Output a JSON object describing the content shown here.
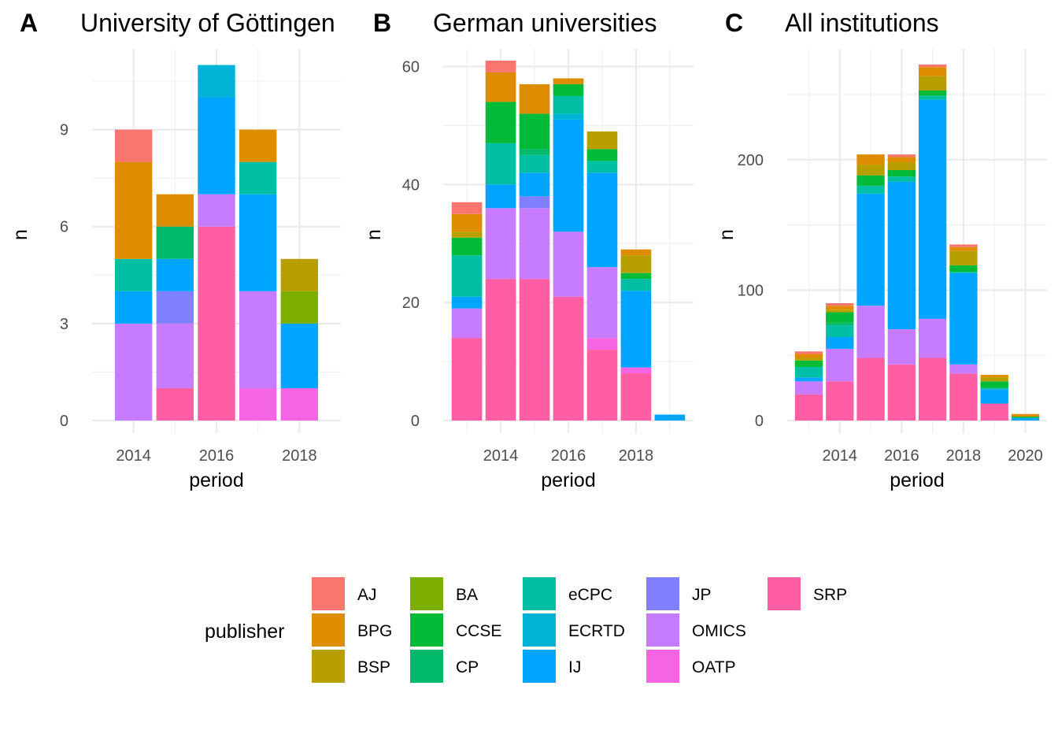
{
  "legend": {
    "title": "publisher",
    "entries": [
      {
        "name": "AJ",
        "color": "#F8766D"
      },
      {
        "name": "BPG",
        "color": "#DE8C00"
      },
      {
        "name": "BSP",
        "color": "#B79F00"
      },
      {
        "name": "BA",
        "color": "#7CAE00"
      },
      {
        "name": "CCSE",
        "color": "#00BA38"
      },
      {
        "name": "CP",
        "color": "#00BA6A"
      },
      {
        "name": "eCPC",
        "color": "#00BFA4"
      },
      {
        "name": "ECRTD",
        "color": "#00B4D7"
      },
      {
        "name": "IJ",
        "color": "#00A5FF"
      },
      {
        "name": "JP",
        "color": "#7F7FFF"
      },
      {
        "name": "OMICS",
        "color": "#C77CFF"
      },
      {
        "name": "OATP",
        "color": "#F564E3"
      },
      {
        "name": "SRP",
        "color": "#FF5DA4"
      }
    ]
  },
  "chart_data": [
    {
      "type": "bar",
      "stacked": true,
      "tag": "A",
      "title": "University of Göttingen",
      "xlabel": "period",
      "ylabel": "n",
      "xlim": [
        2013.0,
        2019.0
      ],
      "ylim": [
        0,
        11.5
      ],
      "xticks": [
        2014,
        2016,
        2018
      ],
      "yticks": [
        0,
        3,
        6,
        9
      ],
      "stack_order": [
        "SRP",
        "OATP",
        "OMICS",
        "JP",
        "IJ",
        "ECRTD",
        "eCPC",
        "CP",
        "CCSE",
        "BA",
        "BSP",
        "BPG",
        "AJ"
      ],
      "bars": [
        {
          "x": 2014,
          "segments": {
            "OMICS": 3,
            "IJ": 1,
            "eCPC": 1,
            "BPG": 3,
            "AJ": 1
          }
        },
        {
          "x": 2015,
          "segments": {
            "SRP": 1,
            "OMICS": 2,
            "JP": 1,
            "IJ": 1,
            "CP": 1,
            "BPG": 1
          }
        },
        {
          "x": 2016,
          "segments": {
            "SRP": 6,
            "OMICS": 1,
            "IJ": 3,
            "ECRTD": 1
          }
        },
        {
          "x": 2017,
          "segments": {
            "OATP": 1,
            "OMICS": 3,
            "IJ": 3,
            "eCPC": 1,
            "BPG": 1
          }
        },
        {
          "x": 2018,
          "segments": {
            "OATP": 1,
            "IJ": 2,
            "BA": 1,
            "BSP": 1
          }
        }
      ]
    },
    {
      "type": "bar",
      "stacked": true,
      "tag": "B",
      "title": "German universities",
      "xlabel": "period",
      "ylabel": "n",
      "xlim": [
        2012.3,
        2019.7
      ],
      "ylim": [
        0,
        63
      ],
      "xticks": [
        2014,
        2016,
        2018
      ],
      "yticks": [
        0,
        20,
        40,
        60
      ],
      "stack_order": [
        "SRP",
        "OATP",
        "OMICS",
        "JP",
        "IJ",
        "ECRTD",
        "eCPC",
        "CP",
        "CCSE",
        "BA",
        "BSP",
        "BPG",
        "AJ"
      ],
      "bars": [
        {
          "x": 2013,
          "segments": {
            "SRP": 14,
            "OMICS": 5,
            "IJ": 2,
            "eCPC": 7,
            "CCSE": 3,
            "BSP": 1,
            "BPG": 3,
            "AJ": 2
          }
        },
        {
          "x": 2014,
          "segments": {
            "SRP": 24,
            "OMICS": 12,
            "IJ": 4,
            "eCPC": 7,
            "CCSE": 7,
            "BPG": 5,
            "AJ": 2
          }
        },
        {
          "x": 2015,
          "segments": {
            "SRP": 24,
            "OMICS": 12,
            "JP": 2,
            "IJ": 4,
            "eCPC": 3,
            "CP": 1,
            "CCSE": 6,
            "BPG": 5
          }
        },
        {
          "x": 2016,
          "segments": {
            "SRP": 21,
            "OMICS": 11,
            "IJ": 19,
            "ECRTD": 1,
            "eCPC": 3,
            "CCSE": 2,
            "BPG": 1
          }
        },
        {
          "x": 2017,
          "segments": {
            "SRP": 12,
            "OATP": 2,
            "OMICS": 12,
            "IJ": 16,
            "eCPC": 2,
            "CCSE": 2,
            "BSP": 3
          }
        },
        {
          "x": 2018,
          "segments": {
            "SRP": 8,
            "OATP": 1,
            "IJ": 13,
            "eCPC": 2,
            "CCSE": 1,
            "BSP": 3,
            "BPG": 1
          }
        },
        {
          "x": 2019,
          "segments": {
            "IJ": 1
          }
        }
      ]
    },
    {
      "type": "bar",
      "stacked": true,
      "tag": "C",
      "title": "All institutions",
      "xlabel": "period",
      "ylabel": "n",
      "xlim": [
        2012.3,
        2020.7
      ],
      "ylim": [
        0,
        285
      ],
      "xticks": [
        2014,
        2016,
        2018,
        2020
      ],
      "yticks": [
        0,
        100,
        200
      ],
      "stack_order": [
        "SRP",
        "OATP",
        "OMICS",
        "JP",
        "IJ",
        "ECRTD",
        "eCPC",
        "CP",
        "CCSE",
        "BA",
        "BSP",
        "BPG",
        "AJ"
      ],
      "bars": [
        {
          "x": 2013,
          "segments": {
            "SRP": 20,
            "OMICS": 10,
            "IJ": 3,
            "eCPC": 8,
            "CCSE": 5,
            "BSP": 2,
            "BPG": 3,
            "AJ": 2
          }
        },
        {
          "x": 2014,
          "segments": {
            "SRP": 30,
            "OMICS": 25,
            "IJ": 9,
            "eCPC": 9,
            "CP": 2,
            "CCSE": 8,
            "BSP": 2,
            "BPG": 3,
            "AJ": 2
          }
        },
        {
          "x": 2015,
          "segments": {
            "SRP": 48,
            "OMICS": 40,
            "IJ": 86,
            "eCPC": 6,
            "CCSE": 8,
            "BSP": 8,
            "BPG": 8
          }
        },
        {
          "x": 2016,
          "segments": {
            "SRP": 43,
            "OMICS": 27,
            "IJ": 113,
            "eCPC": 4,
            "CCSE": 5,
            "BSP": 6,
            "BPG": 4,
            "AJ": 2
          }
        },
        {
          "x": 2017,
          "segments": {
            "SRP": 48,
            "OMICS": 30,
            "IJ": 168,
            "eCPC": 3,
            "CCSE": 4,
            "BSP": 11,
            "BPG": 7,
            "AJ": 2
          }
        },
        {
          "x": 2018,
          "segments": {
            "SRP": 36,
            "OMICS": 7,
            "IJ": 70,
            "eCPC": 1,
            "CCSE": 5,
            "BSP": 11,
            "BPG": 3,
            "AJ": 2
          }
        },
        {
          "x": 2019,
          "segments": {
            "SRP": 13,
            "IJ": 11,
            "eCPC": 1,
            "CCSE": 5,
            "BSP": 3,
            "BPG": 2
          }
        },
        {
          "x": 2020,
          "segments": {
            "IJ": 2,
            "CCSE": 1,
            "BPG": 2
          }
        }
      ]
    }
  ]
}
